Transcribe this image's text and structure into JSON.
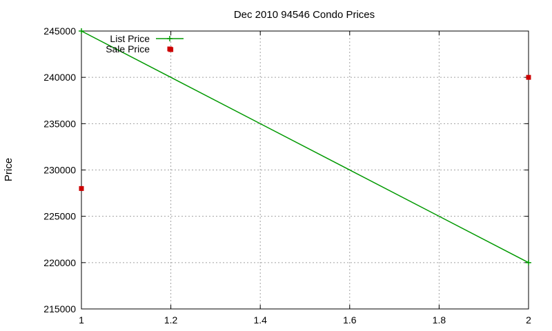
{
  "chart_data": {
    "type": "line",
    "title": "Dec 2010 94546 Condo Prices",
    "xlabel": "",
    "ylabel": "Price",
    "xlim": [
      1,
      2
    ],
    "ylim": [
      215000,
      245000
    ],
    "x_ticks": [
      1,
      1.2,
      1.4,
      1.6,
      1.8,
      2
    ],
    "x_tick_labels": [
      "1",
      "1.2",
      "1.4",
      "1.6",
      "1.8",
      "2"
    ],
    "y_ticks": [
      215000,
      220000,
      225000,
      230000,
      235000,
      240000,
      245000
    ],
    "y_tick_labels": [
      "215000",
      "220000",
      "225000",
      "230000",
      "235000",
      "240000",
      "245000"
    ],
    "grid": true,
    "legend_position": "top-left",
    "series": [
      {
        "name": "List Price",
        "style": "line-with-plus-points",
        "color": "#009900",
        "points": [
          [
            1,
            245000
          ],
          [
            2,
            220000
          ]
        ]
      },
      {
        "name": "Sale Price",
        "style": "square-points",
        "color": "#cc0000",
        "points": [
          [
            1,
            228000
          ],
          [
            2,
            240000
          ],
          [
            1.2,
            243000
          ]
        ]
      }
    ]
  }
}
